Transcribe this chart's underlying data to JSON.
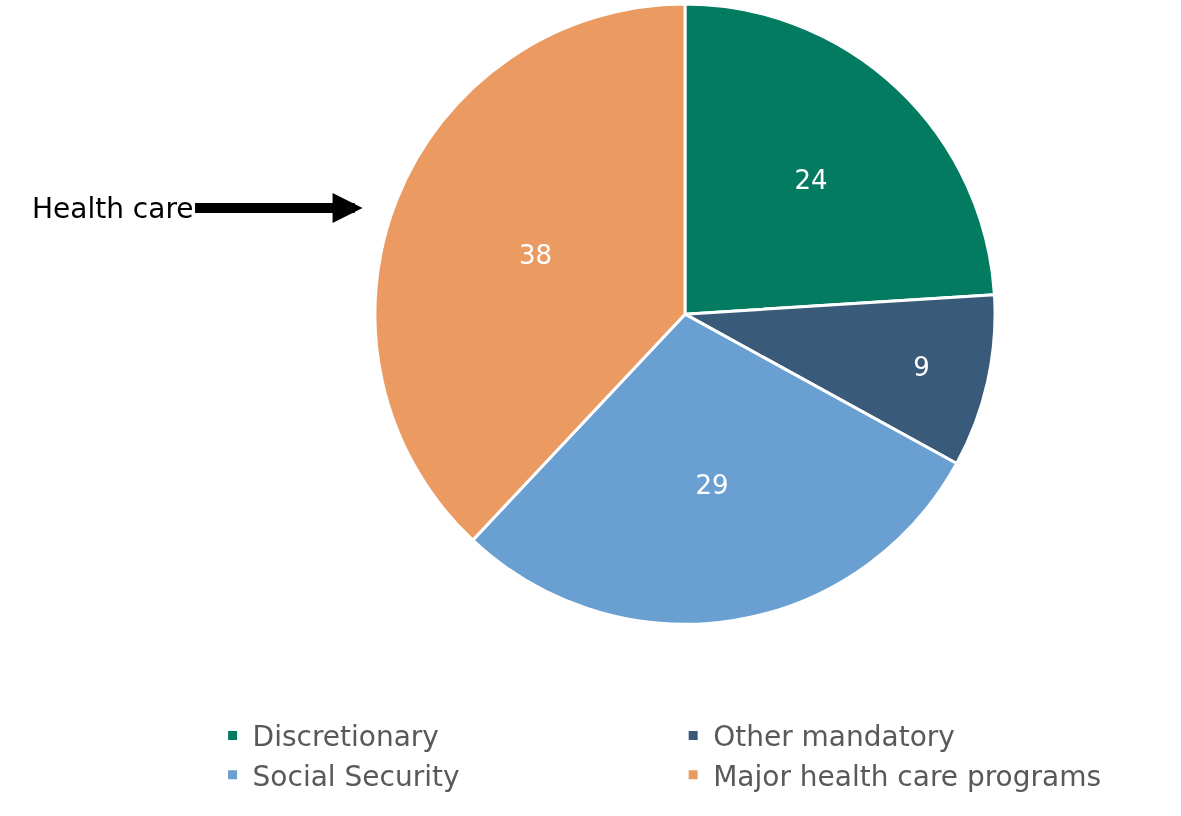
{
  "chart_data": {
    "type": "pie",
    "categories": [
      "Discretionary",
      "Other mandatory",
      "Social Security",
      "Major health care programs"
    ],
    "values": [
      24,
      9,
      29,
      38
    ],
    "colors": [
      "#027b61",
      "#3a5a7a",
      "#6aa0d1",
      "#eb9a61"
    ],
    "data_labels": true,
    "legend": "bottom",
    "annotations": [
      "Health care"
    ]
  }
}
